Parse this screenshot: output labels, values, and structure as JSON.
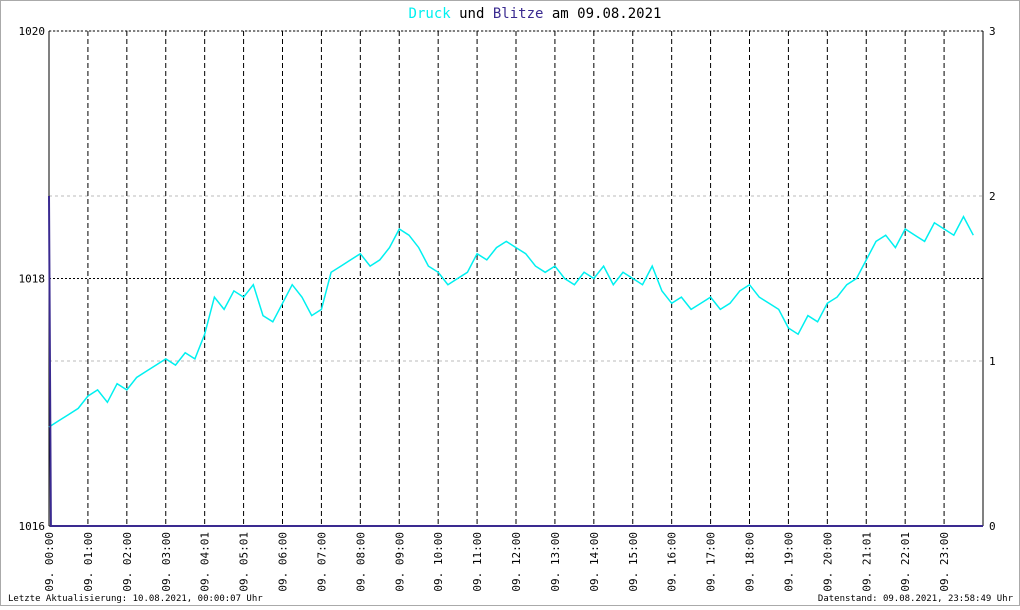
{
  "chart_data": {
    "type": "line",
    "title_join": "und",
    "title_date": "am 09.08.2021",
    "footer_left": "Letzte Aktualisierung: 10.08.2021, 00:00:07 Uhr",
    "footer_right": "Datenstand: 09.08.2021, 23:58:49 Uhr",
    "xlim": [
      0,
      24
    ],
    "xticks": [
      {
        "value": 0,
        "label": "09. 00:00"
      },
      {
        "value": 1,
        "label": "09. 01:00"
      },
      {
        "value": 2,
        "label": "09. 02:00"
      },
      {
        "value": 3,
        "label": "09. 03:00"
      },
      {
        "value": 4,
        "label": "09. 04:01"
      },
      {
        "value": 5,
        "label": "09. 05:01"
      },
      {
        "value": 6,
        "label": "09. 06:00"
      },
      {
        "value": 7,
        "label": "09. 07:00"
      },
      {
        "value": 8,
        "label": "09. 08:00"
      },
      {
        "value": 9,
        "label": "09. 09:00"
      },
      {
        "value": 10,
        "label": "09. 10:00"
      },
      {
        "value": 11,
        "label": "09. 11:00"
      },
      {
        "value": 12,
        "label": "09. 12:00"
      },
      {
        "value": 13,
        "label": "09. 13:00"
      },
      {
        "value": 14,
        "label": "09. 14:00"
      },
      {
        "value": 15,
        "label": "09. 15:00"
      },
      {
        "value": 16,
        "label": "09. 16:00"
      },
      {
        "value": 17,
        "label": "09. 17:00"
      },
      {
        "value": 18,
        "label": "09. 18:00"
      },
      {
        "value": 19,
        "label": "09. 19:00"
      },
      {
        "value": 20,
        "label": "09. 20:00"
      },
      {
        "value": 21,
        "label": "09. 21:01"
      },
      {
        "value": 22,
        "label": "09. 22:01"
      },
      {
        "value": 23,
        "label": "09. 23:00"
      }
    ],
    "ylim": [
      1016,
      1020
    ],
    "yticks": [
      1016,
      1018,
      1020
    ],
    "y2lim": [
      0,
      3
    ],
    "y2ticks": [
      0,
      1,
      2,
      3
    ],
    "series": [
      {
        "name": "Druck",
        "color": "#00f0f0",
        "x": [
          0,
          0.25,
          0.5,
          0.75,
          1,
          1.25,
          1.5,
          1.75,
          2,
          2.25,
          2.5,
          2.75,
          3,
          3.25,
          3.5,
          3.75,
          4,
          4.25,
          4.5,
          4.75,
          5,
          5.25,
          5.5,
          5.75,
          6,
          6.25,
          6.5,
          6.75,
          7,
          7.25,
          7.5,
          7.75,
          8,
          8.25,
          8.5,
          8.75,
          9,
          9.25,
          9.5,
          9.75,
          10,
          10.25,
          10.5,
          10.75,
          11,
          11.25,
          11.5,
          11.75,
          12,
          12.25,
          12.5,
          12.75,
          13,
          13.25,
          13.5,
          13.75,
          14,
          14.25,
          14.5,
          14.75,
          15,
          15.25,
          15.5,
          15.75,
          16,
          16.25,
          16.5,
          16.75,
          17,
          17.25,
          17.5,
          17.75,
          18,
          18.25,
          18.5,
          18.75,
          19,
          19.25,
          19.5,
          19.75,
          20,
          20.25,
          20.5,
          20.75,
          21,
          21.25,
          21.5,
          21.75,
          22,
          22.25,
          22.5,
          22.75,
          23,
          23.25,
          23.5,
          23.75
        ],
        "values": [
          1016.8,
          1016.85,
          1016.9,
          1016.95,
          1017.05,
          1017.1,
          1017.0,
          1017.15,
          1017.1,
          1017.2,
          1017.25,
          1017.3,
          1017.35,
          1017.3,
          1017.4,
          1017.35,
          1017.55,
          1017.85,
          1017.75,
          1017.9,
          1017.85,
          1017.95,
          1017.7,
          1017.65,
          1017.8,
          1017.95,
          1017.85,
          1017.7,
          1017.75,
          1018.05,
          1018.1,
          1018.15,
          1018.2,
          1018.1,
          1018.15,
          1018.25,
          1018.4,
          1018.35,
          1018.25,
          1018.1,
          1018.05,
          1017.95,
          1018.0,
          1018.05,
          1018.2,
          1018.15,
          1018.25,
          1018.3,
          1018.25,
          1018.2,
          1018.1,
          1018.05,
          1018.1,
          1018.0,
          1017.95,
          1018.05,
          1018.0,
          1018.1,
          1017.95,
          1018.05,
          1018.0,
          1017.95,
          1018.1,
          1017.9,
          1017.8,
          1017.85,
          1017.75,
          1017.8,
          1017.85,
          1017.75,
          1017.8,
          1017.9,
          1017.95,
          1017.85,
          1017.8,
          1017.75,
          1017.6,
          1017.55,
          1017.7,
          1017.65,
          1017.8,
          1017.85,
          1017.95,
          1018.0,
          1018.15,
          1018.3,
          1018.35,
          1018.25,
          1018.4,
          1018.35,
          1018.3,
          1018.45,
          1018.4,
          1018.35,
          1018.5,
          1018.35
        ]
      },
      {
        "name": "Blitze",
        "color": "#3a2a90",
        "axis": "y2",
        "x": [
          0,
          0.05,
          24
        ],
        "values": [
          2,
          0,
          0
        ]
      }
    ]
  }
}
